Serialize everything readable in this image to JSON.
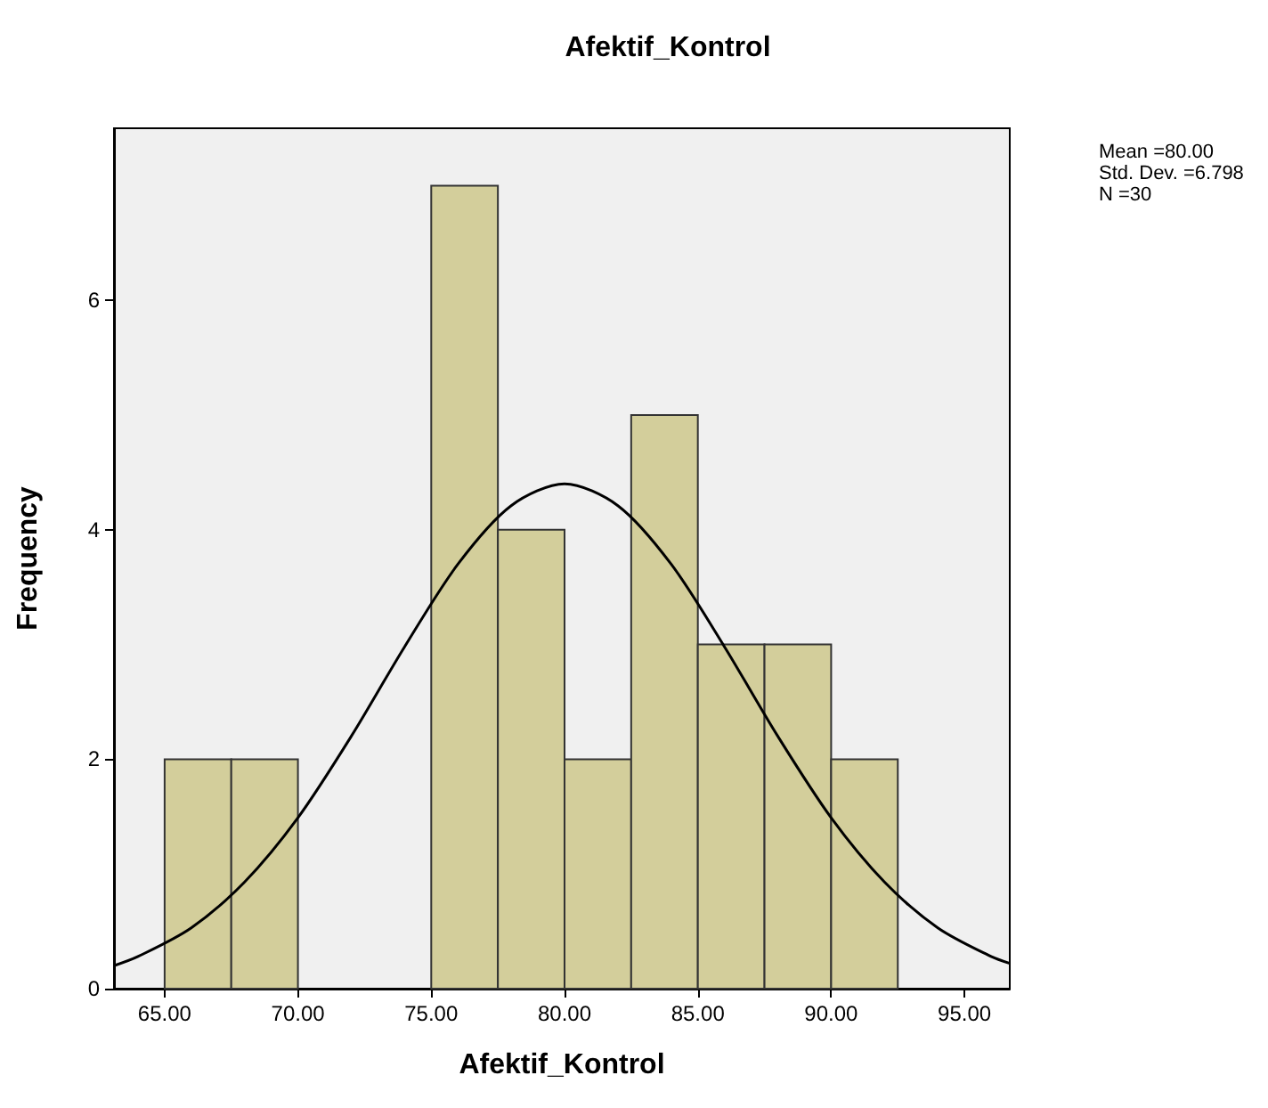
{
  "chart_data": {
    "type": "histogram",
    "title": "Afektif_Kontrol",
    "xlabel": "Afektif_Kontrol",
    "ylabel": "Frequency",
    "annotations": [
      "Mean =80.00",
      "Std. Dev. =6.798",
      "N =30"
    ],
    "series": [
      {
        "type": "histogram",
        "color": "#d3ce9b",
        "bins": [
          65,
          67.5,
          70,
          72.5,
          75,
          77.5,
          80,
          82.5,
          85,
          87.5,
          90,
          92.5
        ],
        "values": [
          2,
          2,
          0,
          0,
          7,
          4,
          2,
          5,
          3,
          3,
          2
        ]
      },
      {
        "type": "line",
        "color": "#000000",
        "x": [
          63.1,
          64,
          66,
          68,
          70,
          72,
          74,
          76,
          78,
          80,
          82,
          84,
          86,
          88,
          90,
          92,
          94,
          96,
          96.7
        ],
        "values": [
          0.2,
          0.28,
          0.53,
          0.93,
          1.49,
          2.2,
          2.98,
          3.7,
          4.21,
          4.4,
          4.21,
          3.7,
          2.98,
          2.2,
          1.49,
          0.93,
          0.53,
          0.28,
          0.22
        ]
      }
    ],
    "xlim": [
      63.1,
      96.7
    ],
    "ylim": [
      0,
      7.5
    ],
    "xticks": [
      {
        "value": 65,
        "label": "65.00"
      },
      {
        "value": 70,
        "label": "70.00"
      },
      {
        "value": 75,
        "label": "75.00"
      },
      {
        "value": 80,
        "label": "80.00"
      },
      {
        "value": 85,
        "label": "85.00"
      },
      {
        "value": 90,
        "label": "90.00"
      },
      {
        "value": 95,
        "label": "95.00"
      }
    ],
    "yticks": [
      0,
      2,
      4,
      6
    ],
    "grid": false,
    "marker": "none",
    "line_style": "solid"
  }
}
